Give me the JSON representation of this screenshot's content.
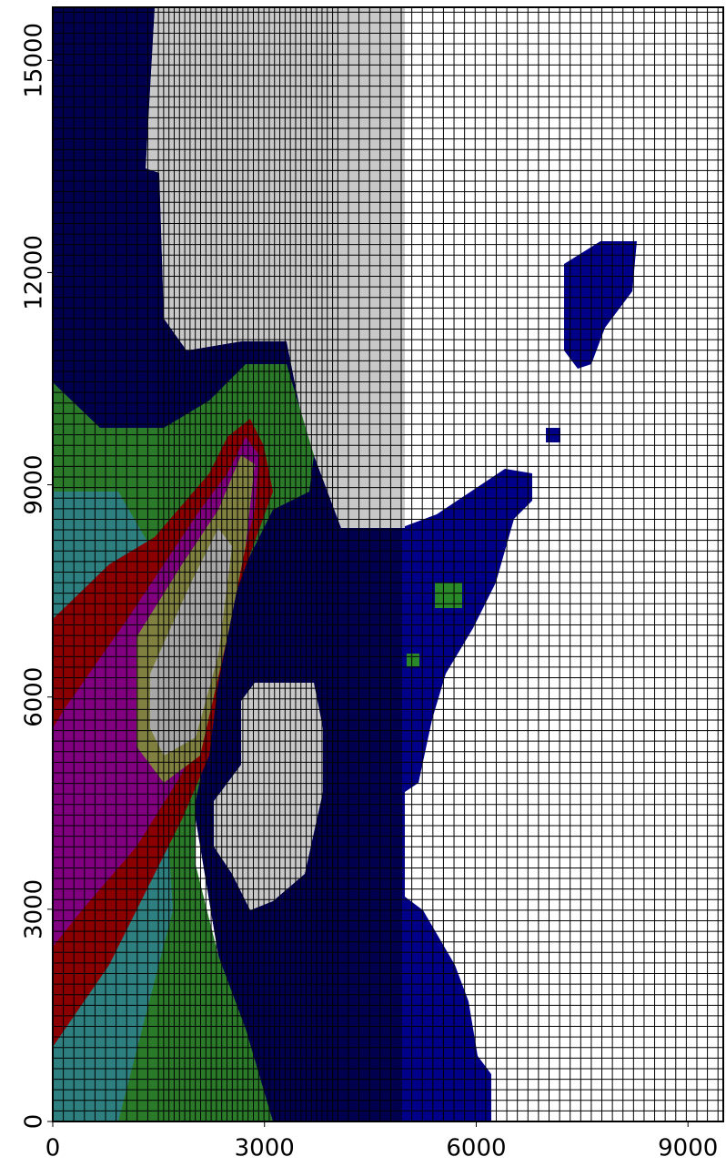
{
  "chart_data": {
    "type": "grid",
    "xlim": [
      0,
      9500
    ],
    "ylim": [
      0,
      15750
    ],
    "xticks": [
      0,
      3000,
      6000,
      9000
    ],
    "yticks": [
      0,
      3000,
      6000,
      9000,
      12000,
      15000
    ],
    "grid": true
  }
}
